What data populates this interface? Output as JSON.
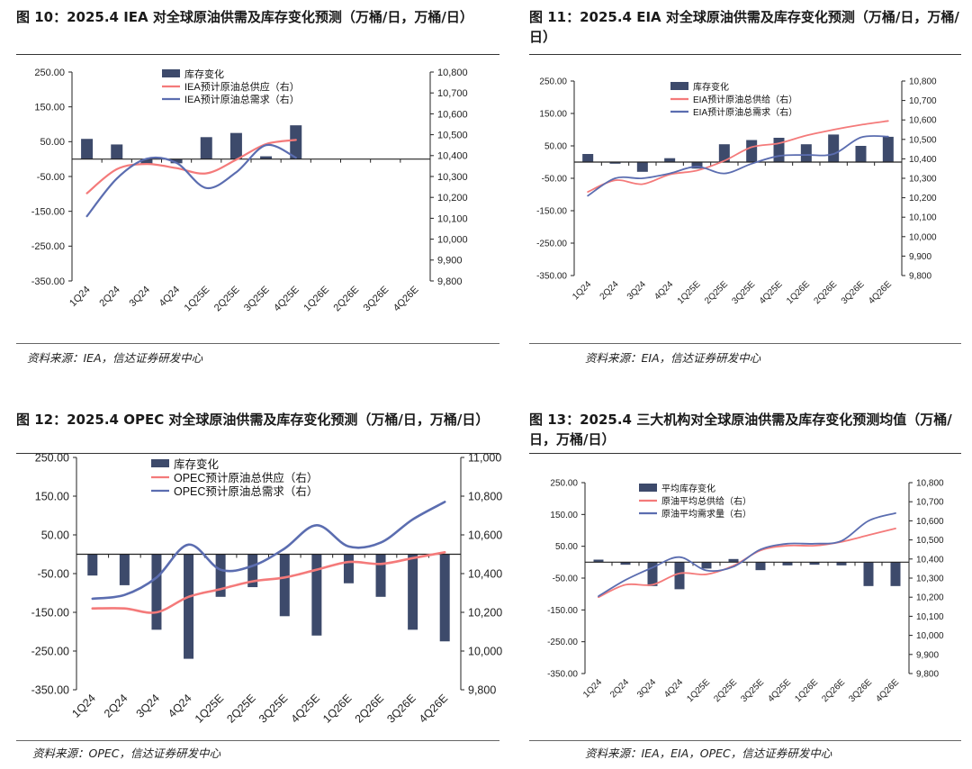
{
  "panels": [
    {
      "title": "图 10：2025.4 IEA 对全球原油供需及库存变化预测（万桶/日，万桶/日）",
      "source": "资料来源：IEA，信达证券研发中心"
    },
    {
      "title": "图 11：2025.4 EIA 对全球原油供需及库存变化预测（万桶/日，万桶/日）",
      "source": "资料来源：EIA，信达证券研发中心"
    },
    {
      "title": "图 12：2025.4 OPEC 对全球原油供需及库存变化预测（万桶/日，万桶/日）",
      "source": "资料来源：OPEC，信达证券研发中心"
    },
    {
      "title": "图 13：2025.4 三大机构对全球原油供需及库存变化预测均值（万桶/日，万桶/日）",
      "source": "资料来源：IEA，EIA，OPEC，信达证券研发中心"
    }
  ],
  "colors": {
    "bar": "#3d4a6b",
    "supply": "#f47a7a",
    "demand": "#5b6db0"
  },
  "chart_data": [
    {
      "type": "bar",
      "title": "图 10：2025.4 IEA 对全球原油供需及库存变化预测（万桶/日，万桶/日）",
      "categories": [
        "1Q24",
        "2Q24",
        "3Q24",
        "4Q24",
        "1Q25E",
        "2Q25E",
        "3Q25E",
        "4Q25E",
        "1Q26E",
        "2Q26E",
        "3Q26E",
        "4Q26E"
      ],
      "y_left": {
        "range": [
          -350,
          250
        ],
        "ticks": [
          "250.00",
          "150.00",
          "50.00",
          "-50.00",
          "-150.00",
          "-250.00",
          "-350.00"
        ]
      },
      "y_right": {
        "range": [
          9800,
          10800
        ],
        "ticks": [
          "10,800",
          "10,700",
          "10,600",
          "10,500",
          "10,400",
          "10,300",
          "10,200",
          "10,100",
          "10,000",
          "9,900",
          "9,800"
        ]
      },
      "series": [
        {
          "name": "库存变化",
          "type": "bar",
          "axis": "left",
          "values": [
            58,
            42,
            -15,
            -12,
            63,
            75,
            8,
            97,
            null,
            null,
            null,
            null
          ]
        },
        {
          "name": "IEA预计原油总供应（右）",
          "type": "line",
          "axis": "right",
          "values": [
            10220,
            10335,
            10360,
            10340,
            10315,
            10380,
            10455,
            10475,
            null,
            null,
            null,
            null
          ]
        },
        {
          "name": "IEA预计原油总需求（右）",
          "type": "line",
          "axis": "right",
          "values": [
            10110,
            10290,
            10385,
            10365,
            10245,
            10320,
            10450,
            10390,
            null,
            null,
            null,
            null
          ]
        }
      ],
      "legend": "top-left"
    },
    {
      "type": "bar",
      "title": "图 11：2025.4 EIA 对全球原油供需及库存变化预测（万桶/日，万桶/日）",
      "categories": [
        "1Q24",
        "2Q24",
        "3Q24",
        "4Q24",
        "1Q25E",
        "2Q25E",
        "3Q25E",
        "4Q25E",
        "1Q26E",
        "2Q26E",
        "3Q26E",
        "4Q26E"
      ],
      "y_left": {
        "range": [
          -350,
          250
        ],
        "ticks": [
          "250.00",
          "150.00",
          "50.00",
          "-50.00",
          "-150.00",
          "-250.00",
          "-350.00"
        ]
      },
      "y_right": {
        "range": [
          9800,
          10800
        ],
        "ticks": [
          "10,800",
          "10,700",
          "10,600",
          "10,500",
          "10,400",
          "10,300",
          "10,200",
          "10,100",
          "10,000",
          "9,900",
          "9,800"
        ]
      },
      "series": [
        {
          "name": "库存变化",
          "type": "bar",
          "axis": "left",
          "values": [
            25,
            -5,
            -30,
            12,
            -20,
            55,
            68,
            75,
            55,
            85,
            50,
            78
          ]
        },
        {
          "name": "EIA预计原油总供给（右）",
          "type": "line",
          "axis": "right",
          "values": [
            10230,
            10290,
            10270,
            10320,
            10340,
            10390,
            10460,
            10480,
            10520,
            10550,
            10575,
            10595
          ]
        },
        {
          "name": "EIA预计原油总需求（右）",
          "type": "line",
          "axis": "right",
          "values": [
            10210,
            10300,
            10300,
            10325,
            10360,
            10325,
            10375,
            10415,
            10420,
            10425,
            10510,
            10515
          ]
        }
      ],
      "legend": "top-left"
    },
    {
      "type": "bar",
      "title": "图 12：2025.4 OPEC 对全球原油供需及库存变化预测（万桶/日，万桶/日）",
      "categories": [
        "1Q24",
        "2Q24",
        "3Q24",
        "4Q24",
        "1Q25E",
        "2Q25E",
        "3Q25E",
        "4Q25E",
        "1Q26E",
        "2Q26E",
        "3Q26E",
        "4Q26E"
      ],
      "y_left": {
        "range": [
          -350,
          250
        ],
        "ticks": [
          "250.00",
          "150.00",
          "50.00",
          "-50.00",
          "-150.00",
          "-250.00",
          "-350.00"
        ]
      },
      "y_right": {
        "range": [
          9800,
          11000
        ],
        "ticks": [
          "11,000",
          "10,800",
          "10,600",
          "10,400",
          "10,200",
          "10,000",
          "9,800"
        ]
      },
      "series": [
        {
          "name": "库存变化",
          "type": "bar",
          "axis": "left",
          "values": [
            -55,
            -80,
            -195,
            -270,
            -110,
            -85,
            -160,
            -210,
            -75,
            -110,
            -195,
            -225
          ]
        },
        {
          "name": "OPEC预计原油总供应（右）",
          "type": "line",
          "axis": "right",
          "values": [
            10220,
            10220,
            10200,
            10280,
            10320,
            10360,
            10380,
            10420,
            10460,
            10450,
            10480,
            10510
          ]
        },
        {
          "name": "OPEC预计原油总需求（右）",
          "type": "line",
          "axis": "right",
          "values": [
            10270,
            10290,
            10380,
            10550,
            10420,
            10440,
            10530,
            10650,
            10540,
            10560,
            10680,
            10770
          ]
        }
      ],
      "legend": "top-left"
    },
    {
      "type": "bar",
      "title": "图 13：2025.4 三大机构对全球原油供需及库存变化预测均值（万桶/日，万桶/日）",
      "categories": [
        "1Q24",
        "2Q24",
        "3Q24",
        "4Q24",
        "1Q25E",
        "2Q25E",
        "3Q25E",
        "4Q25E",
        "1Q26E",
        "2Q26E",
        "3Q26E",
        "4Q26E"
      ],
      "y_left": {
        "range": [
          -350,
          250
        ],
        "ticks": [
          "250.00",
          "150.00",
          "50.00",
          "-50.00",
          "-150.00",
          "-250.00",
          "-350.00"
        ]
      },
      "y_right": {
        "range": [
          9800,
          10800
        ],
        "ticks": [
          "10,800",
          "10,700",
          "10,600",
          "10,500",
          "10,400",
          "10,300",
          "10,200",
          "10,100",
          "10,000",
          "9,900",
          "9,800"
        ]
      },
      "series": [
        {
          "name": "平均库存变化",
          "type": "bar",
          "axis": "left",
          "values": [
            8,
            -8,
            -75,
            -85,
            -20,
            10,
            -25,
            -10,
            -8,
            -10,
            -75,
            -75
          ]
        },
        {
          "name": "原油平均总供给（右）",
          "type": "line",
          "axis": "right",
          "values": [
            10200,
            10265,
            10265,
            10325,
            10320,
            10365,
            10445,
            10470,
            10470,
            10490,
            10525,
            10560
          ]
        },
        {
          "name": "原油平均需求量（右）",
          "type": "line",
          "axis": "right",
          "values": [
            10205,
            10290,
            10355,
            10410,
            10340,
            10360,
            10450,
            10480,
            10480,
            10495,
            10600,
            10640
          ]
        }
      ],
      "legend": "top-left"
    }
  ]
}
